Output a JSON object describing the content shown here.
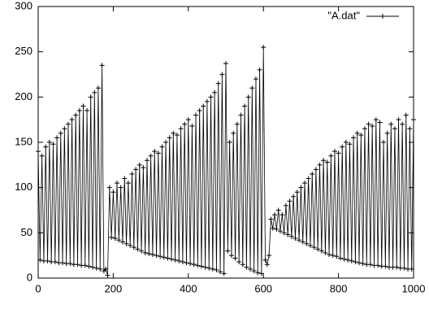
{
  "chart_data": {
    "type": "line",
    "markers": "plus",
    "x": [
      0,
      5,
      10,
      15,
      20,
      25,
      30,
      35,
      40,
      45,
      50,
      55,
      60,
      65,
      70,
      75,
      80,
      85,
      90,
      95,
      100,
      105,
      110,
      115,
      120,
      125,
      130,
      135,
      140,
      145,
      150,
      155,
      160,
      165,
      170,
      175,
      180,
      185,
      190,
      195,
      200,
      205,
      210,
      215,
      220,
      225,
      230,
      235,
      240,
      245,
      250,
      255,
      260,
      265,
      270,
      275,
      280,
      285,
      290,
      295,
      300,
      305,
      310,
      315,
      320,
      325,
      330,
      335,
      340,
      345,
      350,
      355,
      360,
      365,
      370,
      375,
      380,
      385,
      390,
      395,
      400,
      405,
      410,
      415,
      420,
      425,
      430,
      435,
      440,
      445,
      450,
      455,
      460,
      465,
      470,
      475,
      480,
      485,
      490,
      495,
      500,
      505,
      510,
      515,
      520,
      525,
      530,
      535,
      540,
      545,
      550,
      555,
      560,
      565,
      570,
      575,
      580,
      585,
      590,
      595,
      600,
      605,
      610,
      615,
      620,
      625,
      630,
      635,
      640,
      645,
      650,
      655,
      660,
      665,
      670,
      675,
      680,
      685,
      690,
      695,
      700,
      705,
      710,
      715,
      720,
      725,
      730,
      735,
      740,
      745,
      750,
      755,
      760,
      765,
      770,
      775,
      780,
      785,
      790,
      795,
      800,
      805,
      810,
      815,
      820,
      825,
      830,
      835,
      840,
      845,
      850,
      855,
      860,
      865,
      870,
      875,
      880,
      885,
      890,
      895,
      900,
      905,
      910,
      915,
      920,
      925,
      930,
      935,
      940,
      945,
      950,
      955,
      960,
      965,
      970,
      975,
      980,
      985,
      990,
      995,
      1000
    ],
    "series": [
      {
        "name": "\"A.dat\"",
        "color": "#000000",
        "values": [
          140,
          20,
          135,
          19,
          145,
          19,
          150,
          18,
          148,
          18,
          155,
          17,
          160,
          17,
          165,
          16,
          170,
          16,
          175,
          15,
          180,
          15,
          185,
          14,
          190,
          14,
          185,
          13,
          200,
          12,
          205,
          11,
          210,
          10,
          235,
          8,
          10,
          3,
          100,
          45,
          95,
          44,
          105,
          42,
          100,
          40,
          110,
          38,
          105,
          36,
          115,
          34,
          120,
          32,
          125,
          30,
          122,
          28,
          130,
          27,
          135,
          26,
          140,
          25,
          138,
          24,
          145,
          23,
          150,
          22,
          155,
          21,
          160,
          20,
          158,
          19,
          165,
          18,
          170,
          17,
          175,
          16,
          168,
          15,
          180,
          14,
          185,
          13,
          190,
          12,
          195,
          11,
          200,
          10,
          205,
          9,
          215,
          7,
          225,
          5,
          237,
          30,
          150,
          25,
          160,
          22,
          170,
          18,
          180,
          15,
          190,
          12,
          200,
          10,
          210,
          8,
          220,
          6,
          230,
          5,
          255,
          20,
          15,
          25,
          65,
          55,
          70,
          54,
          75,
          52,
          70,
          50,
          80,
          48,
          85,
          46,
          90,
          44,
          95,
          42,
          100,
          40,
          105,
          38,
          110,
          36,
          115,
          34,
          120,
          32,
          125,
          30,
          130,
          28,
          128,
          26,
          135,
          25,
          140,
          24,
          138,
          22,
          145,
          21,
          150,
          20,
          148,
          19,
          155,
          18,
          160,
          17,
          158,
          16,
          165,
          15,
          170,
          15,
          168,
          14,
          175,
          14,
          172,
          13,
          150,
          13,
          160,
          12,
          170,
          12,
          165,
          12,
          175,
          11,
          170,
          11,
          180,
          10,
          165,
          10,
          175
        ]
      }
    ],
    "xlim": [
      0,
      1000
    ],
    "xticks": [
      0,
      200,
      400,
      600,
      800,
      1000
    ],
    "ylim": [
      0,
      300
    ],
    "yticks": [
      0,
      50,
      100,
      150,
      200,
      250,
      300
    ],
    "legend": "top-right"
  }
}
